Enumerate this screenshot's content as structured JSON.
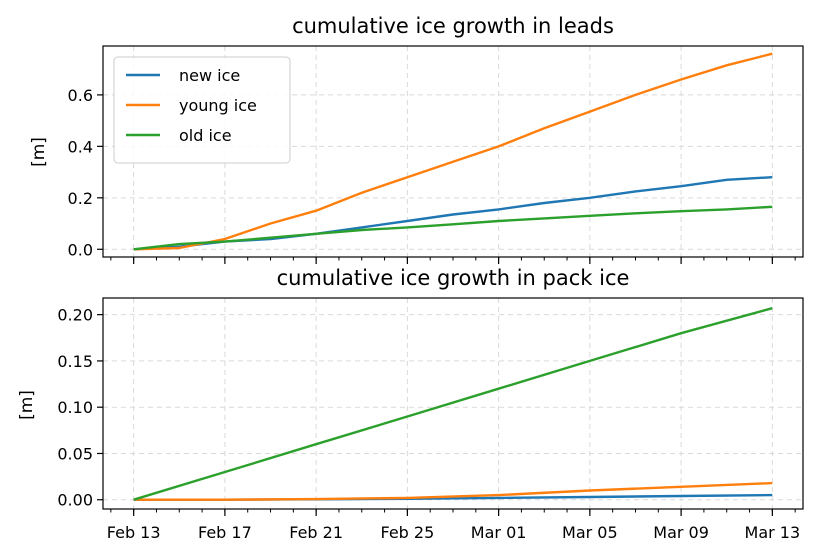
{
  "chart_data": [
    {
      "type": "line",
      "title": "cumulative ice growth in leads",
      "xlabel": "",
      "ylabel": "[m]",
      "x_unit": "date",
      "x_tick_labels": [],
      "xlim": [
        "2025-02-13",
        "2025-03-13"
      ],
      "ylim": [
        -0.03,
        0.79
      ],
      "y_ticks": [
        0.0,
        0.2,
        0.4,
        0.6
      ],
      "y_tick_labels": [
        "0.0",
        "0.2",
        "0.4",
        "0.6"
      ],
      "grid": true,
      "legend": "upper-left",
      "x": [
        "2025-02-13",
        "2025-02-15",
        "2025-02-17",
        "2025-02-19",
        "2025-02-21",
        "2025-02-23",
        "2025-02-25",
        "2025-02-27",
        "2025-03-01",
        "2025-03-03",
        "2025-03-05",
        "2025-03-07",
        "2025-03-09",
        "2025-03-11",
        "2025-03-13"
      ],
      "series": [
        {
          "name": "new ice",
          "color": "#1f77b4",
          "values": [
            0.0,
            0.01,
            0.03,
            0.04,
            0.06,
            0.085,
            0.11,
            0.135,
            0.155,
            0.18,
            0.2,
            0.225,
            0.245,
            0.27,
            0.28
          ]
        },
        {
          "name": "young ice",
          "color": "#ff7f0e",
          "values": [
            0.0,
            0.005,
            0.04,
            0.1,
            0.15,
            0.22,
            0.28,
            0.34,
            0.4,
            0.47,
            0.535,
            0.6,
            0.66,
            0.715,
            0.76
          ]
        },
        {
          "name": "old ice",
          "color": "#2ca02c",
          "values": [
            0.0,
            0.02,
            0.03,
            0.045,
            0.06,
            0.075,
            0.085,
            0.097,
            0.11,
            0.12,
            0.13,
            0.14,
            0.148,
            0.155,
            0.165
          ]
        }
      ]
    },
    {
      "type": "line",
      "title": "cumulative ice growth in pack ice",
      "xlabel": "",
      "ylabel": "[m]",
      "x_unit": "date",
      "x_tick_labels": [
        "Feb 13",
        "Feb 17",
        "Feb 21",
        "Feb 25",
        "Mar 01",
        "Mar 05",
        "Mar 09",
        "Mar 13"
      ],
      "xlim": [
        "2025-02-13",
        "2025-03-13"
      ],
      "ylim": [
        -0.01,
        0.218
      ],
      "y_ticks": [
        0.0,
        0.05,
        0.1,
        0.15,
        0.2
      ],
      "y_tick_labels": [
        "0.00",
        "0.05",
        "0.10",
        "0.15",
        "0.20"
      ],
      "grid": true,
      "legend": "none",
      "x": [
        "2025-02-13",
        "2025-02-17",
        "2025-02-21",
        "2025-02-25",
        "2025-03-01",
        "2025-03-05",
        "2025-03-09",
        "2025-03-13"
      ],
      "series": [
        {
          "name": "",
          "color": "#1f77b4",
          "values": [
            0.0,
            0.0,
            0.0005,
            0.001,
            0.002,
            0.003,
            0.004,
            0.005
          ]
        },
        {
          "name": "",
          "color": "#ff7f0e",
          "values": [
            0.0,
            0.0,
            0.0007,
            0.002,
            0.005,
            0.01,
            0.014,
            0.018
          ]
        },
        {
          "name": "",
          "color": "#2ca02c",
          "values": [
            0.0,
            0.03,
            0.06,
            0.09,
            0.12,
            0.15,
            0.18,
            0.207
          ]
        }
      ]
    }
  ]
}
